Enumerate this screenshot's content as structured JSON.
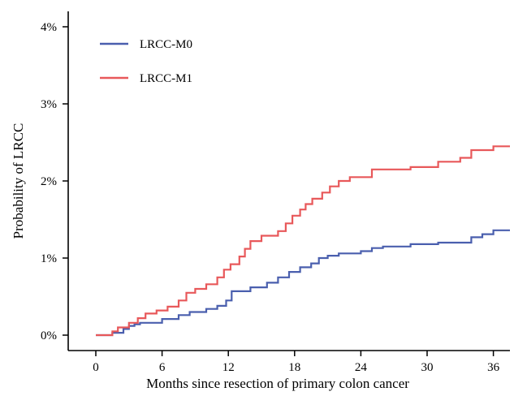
{
  "chart_data": {
    "type": "line",
    "xlabel": "Months since resection of primary colon cancer",
    "ylabel": "Probability of LRCC",
    "xlim": [
      -2.5,
      37.5
    ],
    "ylim": [
      -0.2,
      4.2
    ],
    "x_ticks": [
      0,
      6,
      12,
      18,
      24,
      30,
      36
    ],
    "y_ticks": [
      0,
      1,
      2,
      3,
      4
    ],
    "x_tick_labels": [
      "0",
      "6",
      "12",
      "18",
      "24",
      "30",
      "36"
    ],
    "y_tick_labels": [
      "0%",
      "1%",
      "2%",
      "3%",
      "4%"
    ],
    "grid": false,
    "legend_position": "top-left",
    "series": [
      {
        "name": "LRCC-M0",
        "color": "#4a5fae",
        "points": [
          [
            0,
            0
          ],
          [
            1.5,
            0
          ],
          [
            1.5,
            0.03
          ],
          [
            2.5,
            0.03
          ],
          [
            2.5,
            0.08
          ],
          [
            3,
            0.08
          ],
          [
            3,
            0.12
          ],
          [
            3.5,
            0.12
          ],
          [
            3.5,
            0.14
          ],
          [
            4,
            0.14
          ],
          [
            4,
            0.16
          ],
          [
            6,
            0.16
          ],
          [
            6,
            0.21
          ],
          [
            7.5,
            0.21
          ],
          [
            7.5,
            0.26
          ],
          [
            8.5,
            0.26
          ],
          [
            8.5,
            0.3
          ],
          [
            10,
            0.3
          ],
          [
            10,
            0.34
          ],
          [
            11,
            0.34
          ],
          [
            11,
            0.38
          ],
          [
            11.8,
            0.38
          ],
          [
            11.8,
            0.45
          ],
          [
            12.3,
            0.45
          ],
          [
            12.3,
            0.57
          ],
          [
            14,
            0.57
          ],
          [
            14,
            0.62
          ],
          [
            15.5,
            0.62
          ],
          [
            15.5,
            0.68
          ],
          [
            16.5,
            0.68
          ],
          [
            16.5,
            0.75
          ],
          [
            17.5,
            0.75
          ],
          [
            17.5,
            0.82
          ],
          [
            18.5,
            0.82
          ],
          [
            18.5,
            0.88
          ],
          [
            19.5,
            0.88
          ],
          [
            19.5,
            0.93
          ],
          [
            20.2,
            0.93
          ],
          [
            20.2,
            1.0
          ],
          [
            21,
            1.0
          ],
          [
            21,
            1.03
          ],
          [
            22,
            1.03
          ],
          [
            22,
            1.06
          ],
          [
            24,
            1.06
          ],
          [
            24,
            1.09
          ],
          [
            25,
            1.09
          ],
          [
            25,
            1.13
          ],
          [
            26,
            1.13
          ],
          [
            26,
            1.15
          ],
          [
            28.5,
            1.15
          ],
          [
            28.5,
            1.18
          ],
          [
            31,
            1.18
          ],
          [
            31,
            1.2
          ],
          [
            34,
            1.2
          ],
          [
            34,
            1.27
          ],
          [
            35,
            1.27
          ],
          [
            35,
            1.31
          ],
          [
            36,
            1.31
          ],
          [
            36,
            1.36
          ],
          [
            37.5,
            1.36
          ]
        ]
      },
      {
        "name": "LRCC-M1",
        "color": "#e8585a",
        "points": [
          [
            0,
            0
          ],
          [
            1.5,
            0
          ],
          [
            1.5,
            0.05
          ],
          [
            2,
            0.05
          ],
          [
            2,
            0.1
          ],
          [
            3,
            0.1
          ],
          [
            3,
            0.16
          ],
          [
            3.8,
            0.16
          ],
          [
            3.8,
            0.22
          ],
          [
            4.5,
            0.22
          ],
          [
            4.5,
            0.28
          ],
          [
            5.5,
            0.28
          ],
          [
            5.5,
            0.32
          ],
          [
            6.5,
            0.32
          ],
          [
            6.5,
            0.37
          ],
          [
            7.5,
            0.37
          ],
          [
            7.5,
            0.45
          ],
          [
            8.2,
            0.45
          ],
          [
            8.2,
            0.55
          ],
          [
            9,
            0.55
          ],
          [
            9,
            0.6
          ],
          [
            10,
            0.6
          ],
          [
            10,
            0.66
          ],
          [
            11,
            0.66
          ],
          [
            11,
            0.75
          ],
          [
            11.6,
            0.75
          ],
          [
            11.6,
            0.85
          ],
          [
            12.2,
            0.85
          ],
          [
            12.2,
            0.92
          ],
          [
            13,
            0.92
          ],
          [
            13,
            1.02
          ],
          [
            13.5,
            1.02
          ],
          [
            13.5,
            1.12
          ],
          [
            14,
            1.12
          ],
          [
            14,
            1.22
          ],
          [
            15,
            1.22
          ],
          [
            15,
            1.29
          ],
          [
            16.5,
            1.29
          ],
          [
            16.5,
            1.35
          ],
          [
            17.2,
            1.35
          ],
          [
            17.2,
            1.45
          ],
          [
            17.8,
            1.45
          ],
          [
            17.8,
            1.55
          ],
          [
            18.5,
            1.55
          ],
          [
            18.5,
            1.63
          ],
          [
            19,
            1.63
          ],
          [
            19,
            1.7
          ],
          [
            19.6,
            1.7
          ],
          [
            19.6,
            1.77
          ],
          [
            20.5,
            1.77
          ],
          [
            20.5,
            1.85
          ],
          [
            21.2,
            1.85
          ],
          [
            21.2,
            1.93
          ],
          [
            22,
            1.93
          ],
          [
            22,
            2.0
          ],
          [
            23,
            2.0
          ],
          [
            23,
            2.05
          ],
          [
            25,
            2.05
          ],
          [
            25,
            2.15
          ],
          [
            28.5,
            2.15
          ],
          [
            28.5,
            2.18
          ],
          [
            31,
            2.18
          ],
          [
            31,
            2.25
          ],
          [
            33,
            2.25
          ],
          [
            33,
            2.3
          ],
          [
            34,
            2.3
          ],
          [
            34,
            2.4
          ],
          [
            36,
            2.4
          ],
          [
            36,
            2.45
          ],
          [
            37.5,
            2.45
          ]
        ]
      }
    ]
  }
}
